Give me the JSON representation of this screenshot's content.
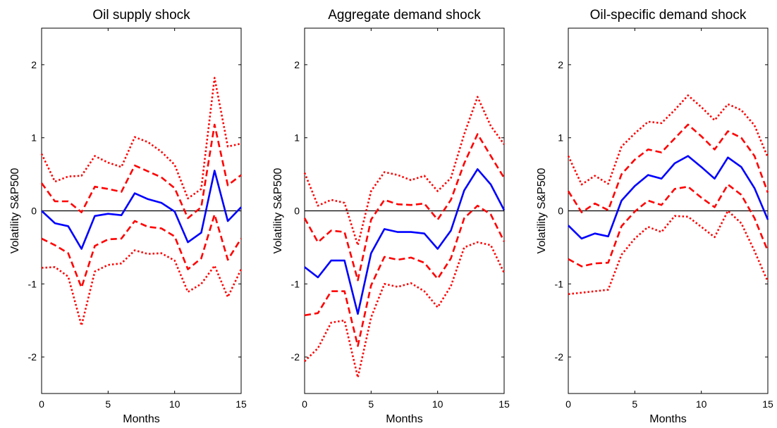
{
  "chart_data": [
    {
      "type": "line",
      "title": "Oil supply shock",
      "xlabel": "Months",
      "ylabel": "Volatility S&P500",
      "xlim": [
        0,
        15
      ],
      "ylim": [
        -2.5,
        2.5
      ],
      "xticks": [
        "0",
        "5",
        "10",
        "15"
      ],
      "yticks": [
        "-2",
        "-1",
        "0",
        "1",
        "2"
      ],
      "zero_line": true,
      "x": [
        0,
        1,
        2,
        3,
        4,
        5,
        6,
        7,
        8,
        9,
        10,
        11,
        12,
        13,
        14,
        15
      ],
      "series": [
        {
          "style": "dotted",
          "color": "#ff0000",
          "values": [
            0.78,
            0.4,
            0.47,
            0.48,
            0.75,
            0.66,
            0.6,
            1.01,
            0.94,
            0.81,
            0.63,
            0.17,
            0.3,
            1.82,
            0.88,
            0.92
          ]
        },
        {
          "style": "dashed",
          "color": "#ff0000",
          "values": [
            0.38,
            0.13,
            0.13,
            -0.02,
            0.33,
            0.3,
            0.26,
            0.62,
            0.54,
            0.46,
            0.31,
            -0.1,
            0.05,
            1.18,
            0.35,
            0.49
          ]
        },
        {
          "style": "solid",
          "color": "#0000ff",
          "values": [
            0.0,
            -0.17,
            -0.21,
            -0.52,
            -0.07,
            -0.04,
            -0.06,
            0.24,
            0.16,
            0.11,
            -0.01,
            -0.43,
            -0.3,
            0.55,
            -0.14,
            0.05
          ]
        },
        {
          "style": "dashed",
          "color": "#ff0000",
          "values": [
            -0.38,
            -0.47,
            -0.58,
            -1.05,
            -0.48,
            -0.39,
            -0.38,
            -0.14,
            -0.22,
            -0.24,
            -0.35,
            -0.8,
            -0.65,
            -0.05,
            -0.67,
            -0.38
          ]
        },
        {
          "style": "dotted",
          "color": "#ff0000",
          "values": [
            -0.78,
            -0.77,
            -0.9,
            -1.57,
            -0.83,
            -0.74,
            -0.72,
            -0.54,
            -0.59,
            -0.58,
            -0.68,
            -1.11,
            -1.0,
            -0.75,
            -1.18,
            -0.8
          ]
        }
      ]
    },
    {
      "type": "line",
      "title": "Aggregate demand shock",
      "xlabel": "Months",
      "ylabel": "Volatility S&P500",
      "xlim": [
        0,
        15
      ],
      "ylim": [
        -2.5,
        2.5
      ],
      "xticks": [
        "0",
        "5",
        "10",
        "15"
      ],
      "yticks": [
        "-2",
        "-1",
        "0",
        "1",
        "2"
      ],
      "zero_line": true,
      "x": [
        0,
        1,
        2,
        3,
        4,
        5,
        6,
        7,
        8,
        9,
        10,
        11,
        12,
        13,
        14,
        15
      ],
      "series": [
        {
          "style": "dotted",
          "color": "#ff0000",
          "values": [
            0.52,
            0.07,
            0.15,
            0.11,
            -0.47,
            0.27,
            0.53,
            0.49,
            0.42,
            0.48,
            0.27,
            0.45,
            1.05,
            1.56,
            1.16,
            0.91
          ]
        },
        {
          "style": "dashed",
          "color": "#ff0000",
          "values": [
            -0.1,
            -0.43,
            -0.27,
            -0.29,
            -0.95,
            -0.12,
            0.15,
            0.09,
            0.08,
            0.1,
            -0.12,
            0.15,
            0.65,
            1.05,
            0.75,
            0.45
          ]
        },
        {
          "style": "solid",
          "color": "#0000ff",
          "values": [
            -0.77,
            -0.91,
            -0.68,
            -0.68,
            -1.41,
            -0.58,
            -0.25,
            -0.29,
            -0.29,
            -0.31,
            -0.52,
            -0.27,
            0.28,
            0.57,
            0.36,
            0.01
          ]
        },
        {
          "style": "dashed",
          "color": "#ff0000",
          "values": [
            -1.43,
            -1.4,
            -1.1,
            -1.1,
            -1.85,
            -1.02,
            -0.63,
            -0.67,
            -0.64,
            -0.71,
            -0.93,
            -0.65,
            -0.1,
            0.07,
            -0.05,
            -0.42
          ]
        },
        {
          "style": "dotted",
          "color": "#ff0000",
          "values": [
            -2.06,
            -1.88,
            -1.53,
            -1.5,
            -2.28,
            -1.46,
            -1.0,
            -1.04,
            -0.99,
            -1.1,
            -1.32,
            -1.03,
            -0.5,
            -0.43,
            -0.47,
            -0.85
          ]
        }
      ]
    },
    {
      "type": "line",
      "title": "Oil-specific demand shock",
      "xlabel": "Months",
      "ylabel": "Volatility S&P500",
      "xlim": [
        0,
        15
      ],
      "ylim": [
        -2.5,
        2.5
      ],
      "xticks": [
        "0",
        "5",
        "10",
        "15"
      ],
      "yticks": [
        "-2",
        "-1",
        "0",
        "1",
        "2"
      ],
      "zero_line": true,
      "x": [
        0,
        1,
        2,
        3,
        4,
        5,
        6,
        7,
        8,
        9,
        10,
        11,
        12,
        13,
        14,
        15
      ],
      "series": [
        {
          "style": "dotted",
          "color": "#ff0000",
          "values": [
            0.75,
            0.36,
            0.48,
            0.37,
            0.88,
            1.06,
            1.22,
            1.2,
            1.38,
            1.58,
            1.42,
            1.24,
            1.46,
            1.38,
            1.17,
            0.73
          ]
        },
        {
          "style": "dashed",
          "color": "#ff0000",
          "values": [
            0.27,
            -0.02,
            0.1,
            0.01,
            0.5,
            0.7,
            0.84,
            0.8,
            0.99,
            1.18,
            1.02,
            0.84,
            1.09,
            1.0,
            0.75,
            0.25
          ]
        },
        {
          "style": "solid",
          "color": "#0000ff",
          "values": [
            -0.2,
            -0.38,
            -0.31,
            -0.35,
            0.14,
            0.34,
            0.49,
            0.44,
            0.65,
            0.75,
            0.6,
            0.44,
            0.73,
            0.6,
            0.31,
            -0.12
          ]
        },
        {
          "style": "dashed",
          "color": "#ff0000",
          "values": [
            -0.66,
            -0.76,
            -0.72,
            -0.71,
            -0.21,
            -0.01,
            0.14,
            0.08,
            0.3,
            0.33,
            0.18,
            0.05,
            0.36,
            0.22,
            -0.1,
            -0.55
          ]
        },
        {
          "style": "dotted",
          "color": "#ff0000",
          "values": [
            -1.14,
            -1.12,
            -1.1,
            -1.08,
            -0.6,
            -0.38,
            -0.22,
            -0.29,
            -0.07,
            -0.08,
            -0.22,
            -0.36,
            0.0,
            -0.17,
            -0.55,
            -0.97
          ]
        }
      ]
    }
  ]
}
